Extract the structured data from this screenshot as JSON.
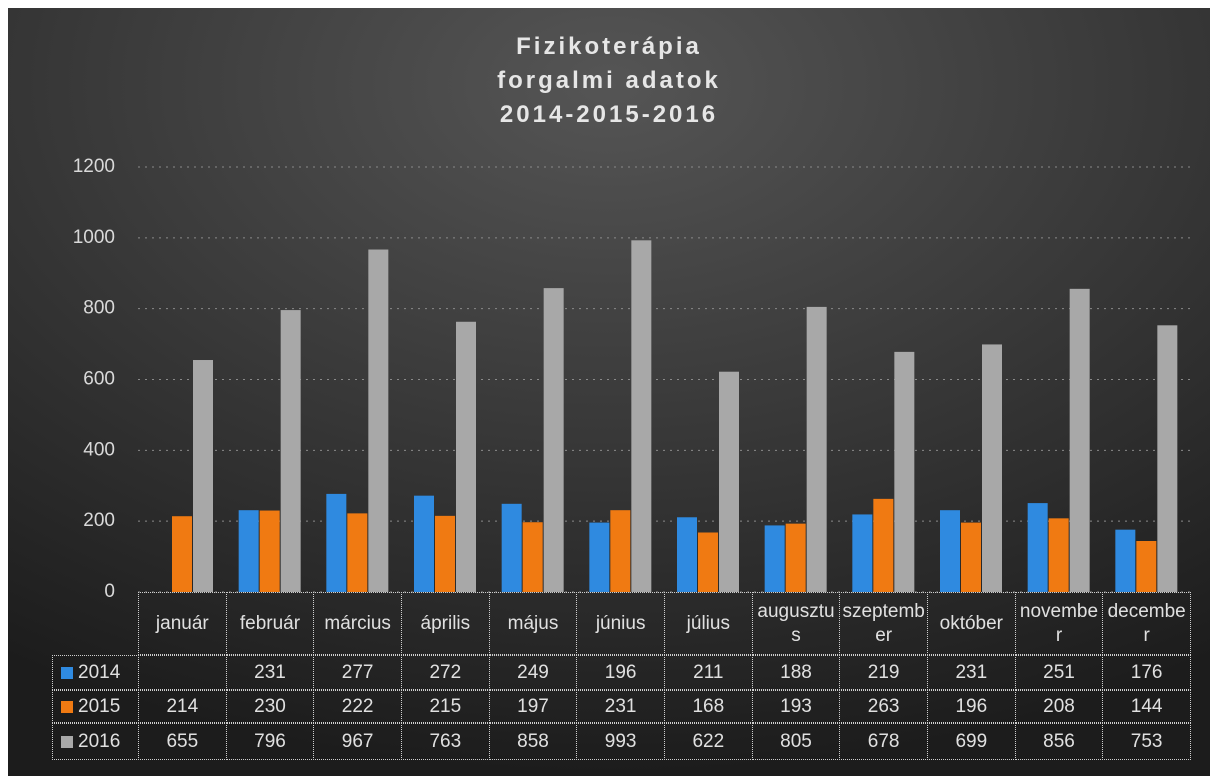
{
  "chart_data": {
    "type": "bar",
    "title": "Fizikoterápia\nforgalmi adatok\n2014-2015-2016",
    "categories": [
      "január",
      "február",
      "március",
      "április",
      "május",
      "június",
      "július",
      "augusztus",
      "szeptember",
      "október",
      "november",
      "december"
    ],
    "series": [
      {
        "name": "2014",
        "color": "#2f8ae0",
        "values": [
          null,
          231,
          277,
          272,
          249,
          196,
          211,
          188,
          219,
          231,
          251,
          176
        ]
      },
      {
        "name": "2015",
        "color": "#f07a12",
        "values": [
          214,
          230,
          222,
          215,
          197,
          231,
          168,
          193,
          263,
          196,
          208,
          144
        ]
      },
      {
        "name": "2016",
        "color": "#a8a8a8",
        "values": [
          655,
          796,
          967,
          763,
          858,
          993,
          622,
          805,
          678,
          699,
          856,
          753
        ]
      }
    ],
    "ylim": [
      0,
      1200
    ],
    "yticks": [
      0,
      200,
      400,
      600,
      800,
      1000,
      1200
    ],
    "grid": true
  }
}
